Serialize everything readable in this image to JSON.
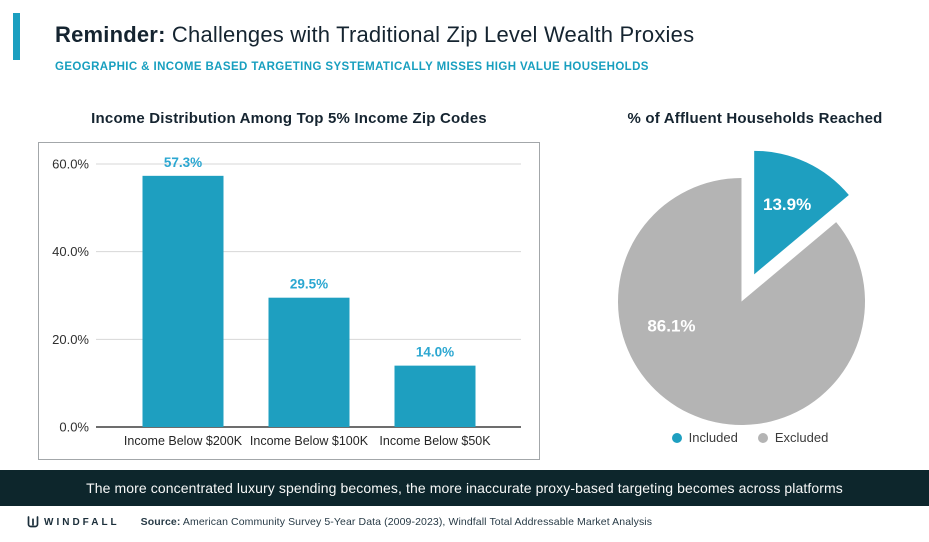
{
  "header": {
    "title_bold": "Reminder:",
    "title_rest": " Challenges with Traditional Zip Level Wealth Proxies",
    "subtitle": "GEOGRAPHIC & INCOME BASED TARGETING SYSTEMATICALLY MISSES HIGH VALUE HOUSEHOLDS"
  },
  "banner": {
    "text": "The more concentrated luxury spending becomes, the more inaccurate proxy-based targeting becomes across platforms"
  },
  "footer": {
    "brand": "WINDFALL",
    "source_label": "Source:",
    "source_text": " American Community Survey 5-Year Data (2009-2023), Windfall Total Addressable Market Analysis"
  },
  "colors": {
    "teal": "#1E9FC0",
    "teal_label": "#2BA7D1",
    "dark_navy": "#152430",
    "banner_bg": "#0D262C",
    "pie_gray": "#B4B4B4",
    "grid_gray": "#D7D7D7",
    "axis_dark": "#3D3D3D"
  },
  "chart_data": [
    {
      "type": "bar",
      "title": "Income Distribution Among Top 5% Income Zip Codes",
      "categories": [
        "Income Below $200K",
        "Income Below $100K",
        "Income Below $50K"
      ],
      "values": [
        57.3,
        29.5,
        14.0
      ],
      "value_labels": [
        "57.3%",
        "29.5%",
        "14.0%"
      ],
      "xlabel": "",
      "ylabel": "",
      "ylim": [
        0,
        65
      ],
      "y_ticks": {
        "values": [
          0,
          20,
          40,
          60
        ],
        "labels": [
          "0.0%",
          "20.0%",
          "40.0%",
          "60.0%"
        ]
      },
      "grid": true,
      "bar_color": "#1E9FC0",
      "label_color": "#2BA7D1"
    },
    {
      "type": "pie",
      "title": "% of Affluent Households Reached",
      "slices": [
        {
          "label": "Included",
          "value": 13.9,
          "text": "13.9%",
          "color": "#1E9FC0",
          "exploded": true
        },
        {
          "label": "Excluded",
          "value": 86.1,
          "text": "86.1%",
          "color": "#B4B4B4",
          "exploded": false
        }
      ],
      "legend": [
        "Included",
        "Excluded"
      ],
      "legend_position": "bottom",
      "start_angle_deg": 0,
      "direction": "clockwise"
    }
  ]
}
